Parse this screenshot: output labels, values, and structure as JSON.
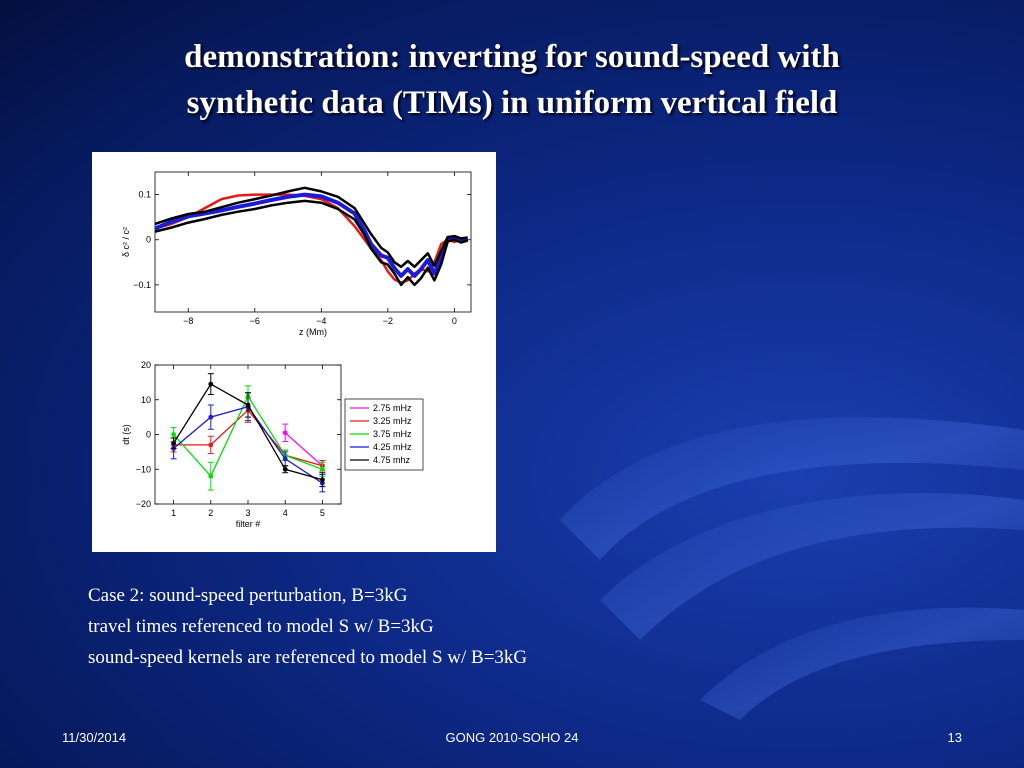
{
  "slide": {
    "title_line1": "demonstration: inverting for sound-speed with",
    "title_line2": "synthetic data (TIMs) in uniform vertical field",
    "caption_line1": "Case 2: sound-speed perturbation, B=3kG",
    "caption_line2": "travel times referenced to model S  w/ B=3kG",
    "caption_line3": "sound-speed kernels are referenced to model S w/ B=3kG",
    "footer_date": "11/30/2014",
    "footer_center": "GONG 2010-SOHO 24",
    "footer_page": "13"
  },
  "colors": {
    "red": "#e41a1a",
    "blue": "#1b1bd8",
    "black": "#000000",
    "magenta": "#ff00ff",
    "green": "#00e000"
  },
  "chart_data": [
    {
      "type": "line",
      "title": "",
      "xlabel": "z (Mm)",
      "ylabel": "δ c² / c²",
      "xlim": [
        -9,
        0.5
      ],
      "ylim": [
        -0.16,
        0.15
      ],
      "xticks": [
        -8,
        -6,
        -4,
        -2,
        0
      ],
      "yticks": [
        0.1,
        0,
        -0.1
      ],
      "xtick_labels": [
        "−8",
        "−6",
        "−4",
        "−2",
        "0"
      ],
      "ytick_labels": [
        "0.1",
        "0",
        "−0.1"
      ],
      "series": [
        {
          "color": "red",
          "x": [
            -9,
            -8.5,
            -8,
            -7.5,
            -7,
            -6.5,
            -6,
            -5.5,
            -5,
            -4.5,
            -4,
            -3.5,
            -3,
            -2.7,
            -2.5,
            -2.2,
            -2.0,
            -1.8,
            -1.6,
            -1.4,
            -1.2,
            -1.0,
            -0.8,
            -0.6,
            -0.4,
            -0.2,
            0,
            0.2,
            0.4
          ],
          "y": [
            0.025,
            0.035,
            0.05,
            0.07,
            0.09,
            0.098,
            0.1,
            0.1,
            0.1,
            0.097,
            0.09,
            0.07,
            0.03,
            0,
            -0.02,
            -0.045,
            -0.07,
            -0.088,
            -0.095,
            -0.09,
            -0.075,
            -0.065,
            -0.07,
            -0.05,
            -0.01,
            0,
            -0.005,
            0,
            0.002
          ]
        },
        {
          "color": "blue",
          "x": [
            -9,
            -8.5,
            -8,
            -7.5,
            -7,
            -6.5,
            -6,
            -5.5,
            -5,
            -4.5,
            -4,
            -3.5,
            -3,
            -2.7,
            -2.5,
            -2.2,
            -2.0,
            -1.8,
            -1.6,
            -1.4,
            -1.2,
            -1.0,
            -0.8,
            -0.6,
            -0.4,
            -0.2,
            0,
            0.2,
            0.4
          ],
          "y": [
            0.025,
            0.04,
            0.052,
            0.058,
            0.065,
            0.073,
            0.08,
            0.088,
            0.095,
            0.1,
            0.096,
            0.082,
            0.058,
            0.02,
            -0.01,
            -0.035,
            -0.04,
            -0.063,
            -0.08,
            -0.065,
            -0.08,
            -0.065,
            -0.045,
            -0.075,
            -0.04,
            0.002,
            0.005,
            -0.002,
            0.002
          ]
        },
        {
          "color": "black",
          "x": [
            -9,
            -8.5,
            -8,
            -7.5,
            -7,
            -6.5,
            -6,
            -5.5,
            -5,
            -4.5,
            -4,
            -3.5,
            -3,
            -2.7,
            -2.5,
            -2.2,
            -2.0,
            -1.8,
            -1.6,
            -1.4,
            -1.2,
            -1.0,
            -0.8,
            -0.6,
            -0.4,
            -0.2,
            0,
            0.2,
            0.4
          ],
          "y": [
            0.035,
            0.047,
            0.057,
            0.062,
            0.072,
            0.082,
            0.09,
            0.098,
            0.107,
            0.115,
            0.107,
            0.095,
            0.07,
            0.035,
            0.012,
            -0.018,
            -0.028,
            -0.05,
            -0.06,
            -0.047,
            -0.06,
            -0.045,
            -0.03,
            -0.058,
            -0.025,
            0.006,
            0.008,
            0.003,
            0.005
          ]
        },
        {
          "color": "black",
          "x": [
            -9,
            -8.5,
            -8,
            -7.5,
            -7,
            -6.5,
            -6,
            -5.5,
            -5,
            -4.5,
            -4,
            -3.5,
            -3,
            -2.7,
            -2.5,
            -2.2,
            -2.0,
            -1.8,
            -1.6,
            -1.4,
            -1.2,
            -1.0,
            -0.8,
            -0.6,
            -0.4,
            -0.2,
            0,
            0.2,
            0.4
          ],
          "y": [
            0.018,
            0.027,
            0.038,
            0.046,
            0.055,
            0.062,
            0.068,
            0.076,
            0.082,
            0.086,
            0.082,
            0.068,
            0.045,
            0.01,
            -0.02,
            -0.05,
            -0.055,
            -0.075,
            -0.1,
            -0.083,
            -0.1,
            -0.085,
            -0.062,
            -0.09,
            -0.055,
            -0.004,
            0.0,
            -0.006,
            -0.002
          ]
        }
      ]
    },
    {
      "type": "line",
      "title": "",
      "xlabel": "filter #",
      "ylabel": "dt (s)",
      "xlim": [
        0.5,
        5.5
      ],
      "ylim": [
        -20,
        20
      ],
      "xticks": [
        1,
        2,
        3,
        4,
        5
      ],
      "yticks": [
        20,
        10,
        0,
        -10,
        -20
      ],
      "xtick_labels": [
        "1",
        "2",
        "3",
        "4",
        "5"
      ],
      "ytick_labels": [
        "20",
        "10",
        "0",
        "−10",
        "−20"
      ],
      "legend_position": "right",
      "series": [
        {
          "name": "2.75 mHz",
          "color": "magenta",
          "x": [
            4,
            5
          ],
          "y": [
            0.5,
            -9
          ],
          "err": [
            2.5,
            1.5
          ]
        },
        {
          "name": "3.25 mHz",
          "color": "red",
          "x": [
            1,
            2,
            3,
            4,
            5
          ],
          "y": [
            -3,
            -3,
            7,
            -6,
            -9
          ],
          "err": [
            2,
            2.5,
            3.5,
            1.5,
            1.5
          ]
        },
        {
          "name": "3.75 mHz",
          "color": "green",
          "x": [
            1,
            2,
            3,
            4,
            5
          ],
          "y": [
            0,
            -12,
            11,
            -6,
            -10
          ],
          "err": [
            2,
            4,
            3,
            1.5,
            2
          ]
        },
        {
          "name": "4.25 mHz",
          "color": "blue",
          "x": [
            1,
            2,
            3,
            4,
            5
          ],
          "y": [
            -4,
            5,
            8,
            -7,
            -14
          ],
          "err": [
            3,
            3.5,
            4,
            2,
            2.5
          ]
        },
        {
          "name": "4.75 mhz",
          "color": "black",
          "x": [
            1,
            2,
            3,
            4,
            5
          ],
          "y": [
            -2.5,
            14.5,
            8.5,
            -10,
            -13
          ],
          "err": [
            1.5,
            3,
            3.5,
            1,
            2
          ]
        }
      ]
    }
  ]
}
